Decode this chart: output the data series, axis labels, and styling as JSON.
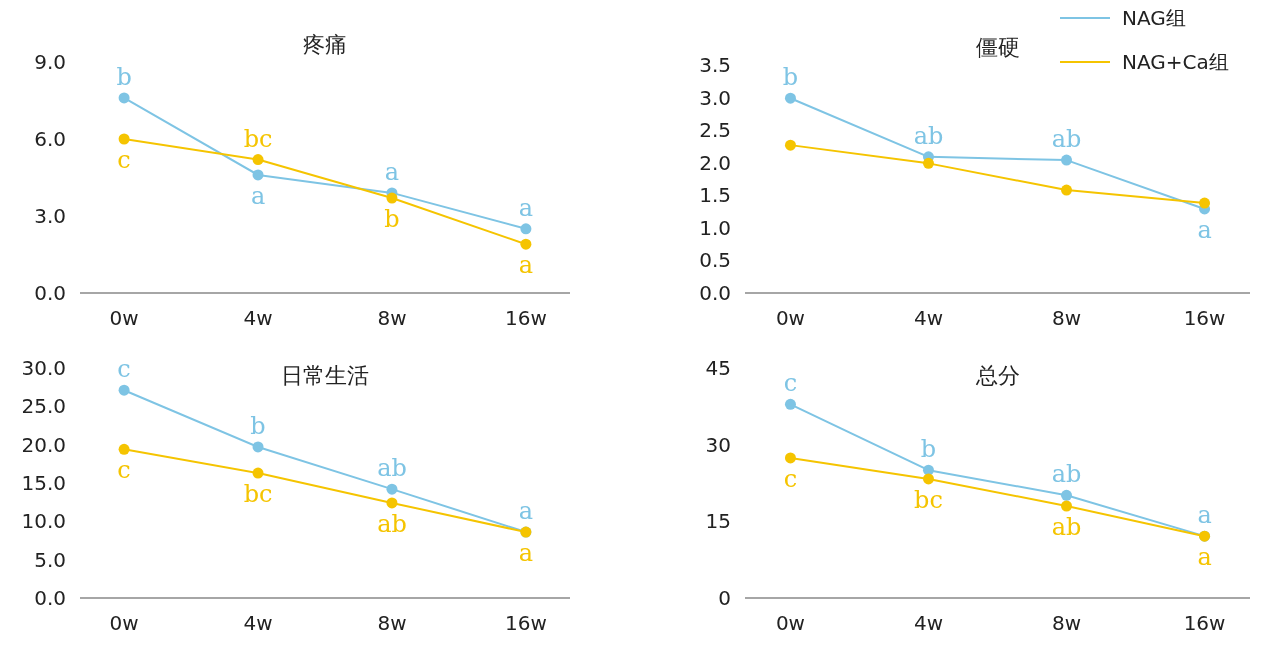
{
  "chart_data": [
    {
      "type": "line",
      "title": "疼痛",
      "categories": [
        "0w",
        "4w",
        "8w",
        "16w"
      ],
      "ylim": [
        0,
        9
      ],
      "yticks": [
        {
          "value": 0,
          "label": "0.0"
        },
        {
          "value": 3,
          "label": "3.0"
        },
        {
          "value": 6,
          "label": "6.0"
        },
        {
          "value": 9,
          "label": "9.0"
        }
      ],
      "marker": "circle",
      "series": [
        {
          "color": "#7ec4e4",
          "values": [
            7.6,
            4.6,
            3.9,
            2.5
          ],
          "value_labels": [
            "b",
            "a",
            "a",
            "a"
          ]
        },
        {
          "color": "#f5c400",
          "values": [
            6.0,
            5.2,
            3.7,
            1.9
          ],
          "value_labels": [
            "c",
            "bc",
            "b",
            "a"
          ]
        }
      ]
    },
    {
      "type": "line",
      "title": "僵硬",
      "categories": [
        "0w",
        "4w",
        "8w",
        "16w"
      ],
      "ylim": [
        0,
        3.5
      ],
      "yticks": [
        {
          "value": 0,
          "label": "0.0"
        },
        0.5,
        {
          "value": 1,
          "label": "1.0"
        },
        1.5,
        {
          "value": 2,
          "label": "2.0"
        },
        2.5,
        {
          "value": 3,
          "label": "3.0"
        },
        3.5
      ],
      "marker": "circle",
      "legend": "top right",
      "series": [
        {
          "name": "NAG组",
          "color": "#7ec4e4",
          "values": [
            2.99,
            2.09,
            2.04,
            1.29
          ],
          "value_labels": [
            "b",
            "ab",
            "ab",
            "a"
          ]
        },
        {
          "name": "NAG+Ca组",
          "color": "#f5c400",
          "values": [
            2.27,
            1.99,
            1.58,
            1.38
          ]
        }
      ]
    },
    {
      "type": "line",
      "title": "日常生活",
      "categories": [
        "0w",
        "4w",
        "8w",
        "16w"
      ],
      "ylim": [
        0,
        30
      ],
      "yticks": [
        {
          "value": 0,
          "label": "0.0"
        },
        {
          "value": 5,
          "label": "5.0"
        },
        {
          "value": 10,
          "label": "10.0"
        },
        {
          "value": 15,
          "label": "15.0"
        },
        {
          "value": 20,
          "label": "20.0"
        },
        {
          "value": 25,
          "label": "25.0"
        },
        {
          "value": 30,
          "label": "30.0"
        }
      ],
      "marker": "circle",
      "series": [
        {
          "color": "#7ec4e4",
          "values": [
            27.1,
            19.7,
            14.2,
            8.6
          ],
          "value_labels": [
            "c",
            "b",
            "ab",
            "a"
          ]
        },
        {
          "color": "#f5c400",
          "values": [
            19.4,
            16.3,
            12.4,
            8.6
          ],
          "value_labels": [
            "c",
            "bc",
            "ab",
            "a"
          ]
        }
      ]
    },
    {
      "type": "line",
      "title": "总分",
      "categories": [
        "0w",
        "4w",
        "8w",
        "16w"
      ],
      "ylim": [
        0,
        45
      ],
      "yticks": [
        0,
        15,
        30,
        45
      ],
      "marker": "circle",
      "series": [
        {
          "color": "#7ec4e4",
          "values": [
            37.9,
            25.0,
            20.1,
            12.1
          ],
          "value_labels": [
            "c",
            "b",
            "ab",
            "a"
          ]
        },
        {
          "color": "#f5c400",
          "values": [
            27.4,
            23.3,
            18.0,
            12.1
          ],
          "value_labels": [
            "c",
            "bc",
            "ab",
            "a"
          ]
        }
      ]
    }
  ]
}
